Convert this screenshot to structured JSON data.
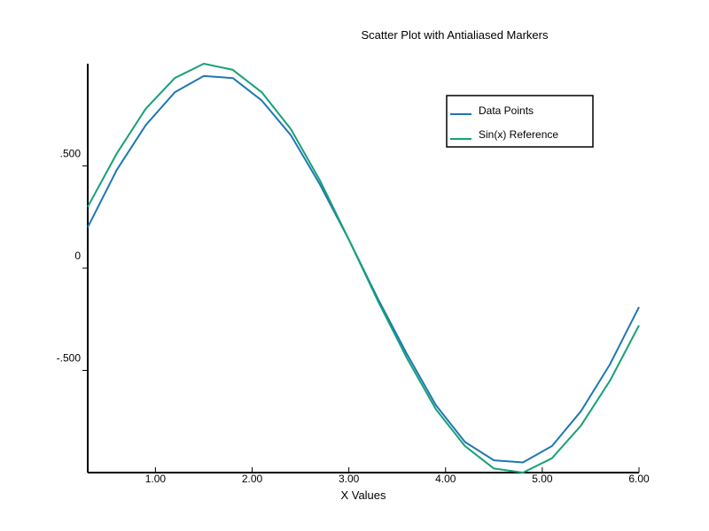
{
  "chart_data": {
    "type": "line",
    "title": "Scatter Plot with Antialiased Markers",
    "xlabel": "X Values",
    "ylabel": "",
    "xlim": [
      0.3,
      6.0
    ],
    "ylim": [
      -1.0,
      1.0
    ],
    "x_ticks": [
      {
        "value": 1.0,
        "label": "1.00"
      },
      {
        "value": 2.0,
        "label": "2.00"
      },
      {
        "value": 3.0,
        "label": "3.00"
      },
      {
        "value": 4.0,
        "label": "4.00"
      },
      {
        "value": 5.0,
        "label": "5.00"
      },
      {
        "value": 6.0,
        "label": "6.00"
      }
    ],
    "y_ticks": [
      {
        "value": 0.5,
        "label": ".500"
      },
      {
        "value": 0.0,
        "label": "0"
      },
      {
        "value": -0.5,
        "label": "-.500"
      }
    ],
    "grid": false,
    "legend_position": "top-right",
    "series": [
      {
        "name": "Data Points",
        "color": "#1f77b4",
        "x": [
          0.3,
          0.6,
          0.9,
          1.2,
          1.5,
          1.8,
          2.1,
          2.4,
          2.7,
          3.0,
          3.3,
          3.6,
          3.9,
          4.2,
          4.5,
          4.8,
          5.1,
          5.4,
          5.7,
          6.0
        ],
        "y": [
          0.2,
          0.48,
          0.7,
          0.86,
          0.94,
          0.93,
          0.82,
          0.65,
          0.41,
          0.14,
          -0.15,
          -0.42,
          -0.67,
          -0.85,
          -0.94,
          -0.95,
          -0.87,
          -0.7,
          -0.47,
          -0.19
        ]
      },
      {
        "name": "Sin(x) Reference",
        "color": "#17a077",
        "x": [
          0.3,
          0.6,
          0.9,
          1.2,
          1.5,
          1.8,
          2.1,
          2.4,
          2.7,
          3.0,
          3.3,
          3.6,
          3.9,
          4.2,
          4.5,
          4.8,
          5.1,
          5.4,
          5.7,
          6.0
        ],
        "y": [
          0.3,
          0.56,
          0.78,
          0.93,
          1.0,
          0.97,
          0.86,
          0.68,
          0.43,
          0.14,
          -0.16,
          -0.44,
          -0.69,
          -0.87,
          -0.98,
          -1.0,
          -0.93,
          -0.77,
          -0.55,
          -0.28
        ]
      }
    ]
  }
}
